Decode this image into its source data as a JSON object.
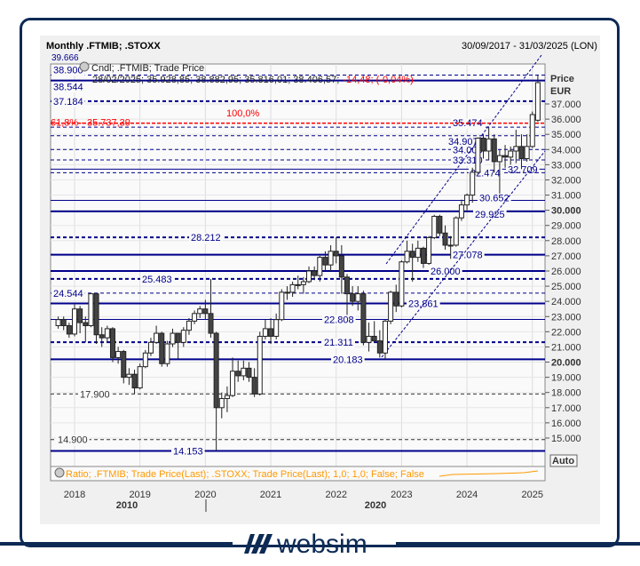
{
  "header": {
    "title": "Monthly .FTMIB; .STOXX",
    "date_range": "30/09/2017 - 31/03/2025 (LON)"
  },
  "legend": {
    "line1": "Cndl; .FTMIB; Trade Price",
    "line2_values": "28/02/2025; 35.928,85; 38.882,95; 35.816,01; 38.406,57;",
    "change": "-14,48; (-0,04%)",
    "fib_100": "100,0%",
    "fib_618": "61,8% - 35.737,39",
    "top_cut": "39.666"
  },
  "axis": {
    "title1": "Price",
    "title2": "EUR",
    "auto": "Auto",
    "yticks": [
      "37.000",
      "36.000",
      "35.000",
      "34.000",
      "33.000",
      "32.000",
      "31.000",
      "30.000",
      "29.000",
      "28.000",
      "27.000",
      "26.000",
      "25.000",
      "24.000",
      "23.000",
      "22.000",
      "21.000",
      "20.000",
      "19.000",
      "18.000",
      "17.000",
      "16.000",
      "15.000"
    ],
    "bold_ticks": [
      "30.000",
      "20.000"
    ],
    "xticks": [
      "2018",
      "2019",
      "2020",
      "2021",
      "2022",
      "2023",
      "2024",
      "2025"
    ],
    "decades": [
      "2010",
      "2020"
    ]
  },
  "levels": [
    {
      "label": "38.900",
      "style": "dash"
    },
    {
      "label": "38.544",
      "style": "solid-thick"
    },
    {
      "label": "37.184",
      "style": "dash-thick"
    },
    {
      "label": "35.474",
      "style": "dash"
    },
    {
      "label": "34.907",
      "style": "dash"
    },
    {
      "label": "34.000",
      "style": "dash"
    },
    {
      "label": "33.310",
      "style": "dash"
    },
    {
      "label": "32.709",
      "style": "solid"
    },
    {
      "label": "32.474",
      "style": "dash"
    },
    {
      "label": "30.652",
      "style": "solid"
    },
    {
      "label": "29.925",
      "style": "solid-thick"
    },
    {
      "label": "28.212",
      "style": "dash-thick"
    },
    {
      "label": "27.078",
      "style": "solid-thick"
    },
    {
      "label": "26.000",
      "style": "solid-thick"
    },
    {
      "label": "25.483",
      "style": "dash-thick"
    },
    {
      "label": "24.544",
      "style": "dash"
    },
    {
      "label": "23.861",
      "style": "solid-thick"
    },
    {
      "label": "22.808",
      "style": "solid"
    },
    {
      "label": "21.311",
      "style": "dash-thick"
    },
    {
      "label": "20.183",
      "style": "solid-thick"
    },
    {
      "label": "17.900",
      "style": "dash-black"
    },
    {
      "label": "14.900",
      "style": "dash-black"
    },
    {
      "label": "14.153",
      "style": "solid-thick"
    }
  ],
  "lower_pane": {
    "legend": "Ratio; .FTMIB; Trade Price(Last); .STOXX; Trade Price(Last);  1,0; 1,0; False; False"
  },
  "colors": {
    "level": "#00008b",
    "fib": "#ff0000",
    "ratio": "#ff9900",
    "frame": "#0d2a55"
  },
  "brand": "websim",
  "chart_data": {
    "type": "candlestick",
    "interval": "monthly",
    "start": "2017-10",
    "ylim": [
      14000,
      39700
    ],
    "ohlc": [
      [
        22400,
        23000,
        22200,
        22800
      ],
      [
        22800,
        23000,
        22100,
        22400
      ],
      [
        22400,
        22600,
        21600,
        21850
      ],
      [
        21850,
        23800,
        21700,
        23500
      ],
      [
        23500,
        23700,
        21900,
        22600
      ],
      [
        22600,
        23000,
        21300,
        22400
      ],
      [
        22400,
        24544,
        22300,
        24500
      ],
      [
        24500,
        24500,
        21200,
        21800
      ],
      [
        21800,
        22300,
        21000,
        21600
      ],
      [
        21600,
        22400,
        21300,
        22200
      ],
      [
        22200,
        22300,
        20000,
        20300
      ],
      [
        20300,
        21000,
        19900,
        20700
      ],
      [
        20700,
        20800,
        18600,
        19000
      ],
      [
        19000,
        19600,
        18500,
        19200
      ],
      [
        19200,
        19500,
        17900,
        18300
      ],
      [
        18300,
        19900,
        18200,
        19700
      ],
      [
        19700,
        20800,
        19600,
        20600
      ],
      [
        20600,
        21600,
        20400,
        21300
      ],
      [
        21300,
        22400,
        21200,
        21900
      ],
      [
        21900,
        22000,
        19700,
        19900
      ],
      [
        19900,
        21400,
        19700,
        21200
      ],
      [
        21200,
        22200,
        21000,
        21900
      ],
      [
        21900,
        21900,
        20200,
        21300
      ],
      [
        21300,
        22300,
        21000,
        22100
      ],
      [
        22100,
        22900,
        21800,
        22700
      ],
      [
        22700,
        23400,
        22500,
        23200
      ],
      [
        23200,
        23700,
        22900,
        23500
      ],
      [
        23500,
        24100,
        22800,
        23200
      ],
      [
        23200,
        25483,
        21600,
        21900
      ],
      [
        21900,
        22000,
        14153,
        17000
      ],
      [
        17000,
        18000,
        16300,
        17600
      ],
      [
        17600,
        18400,
        16700,
        17800
      ],
      [
        17800,
        20300,
        17700,
        19400
      ],
      [
        19400,
        20100,
        18700,
        19100
      ],
      [
        19100,
        20100,
        18800,
        19600
      ],
      [
        19600,
        20000,
        18700,
        19000
      ],
      [
        19000,
        19600,
        17700,
        17900
      ],
      [
        17900,
        22000,
        17800,
        21700
      ],
      [
        21700,
        22800,
        21500,
        22200
      ],
      [
        22200,
        22900,
        21200,
        21700
      ],
      [
        21700,
        23200,
        21500,
        22800
      ],
      [
        22800,
        24800,
        22700,
        24600
      ],
      [
        24600,
        25000,
        24100,
        24600
      ],
      [
        24600,
        25300,
        24300,
        25100
      ],
      [
        25100,
        25700,
        24800,
        25100
      ],
      [
        25100,
        25600,
        24500,
        25300
      ],
      [
        25300,
        26300,
        25200,
        26000
      ],
      [
        26000,
        26300,
        25400,
        25700
      ],
      [
        25700,
        27000,
        25300,
        26900
      ],
      [
        26900,
        27300,
        26000,
        26400
      ],
      [
        26400,
        27700,
        26000,
        27300
      ],
      [
        27300,
        28212,
        26500,
        27000
      ],
      [
        27000,
        27700,
        24500,
        25600
      ],
      [
        25600,
        25800,
        23100,
        24500
      ],
      [
        24500,
        25000,
        23700,
        24000
      ],
      [
        24000,
        25000,
        23400,
        24500
      ],
      [
        24500,
        24700,
        21100,
        21300
      ],
      [
        21300,
        22600,
        20700,
        21700
      ],
      [
        21700,
        22700,
        21300,
        21400
      ],
      [
        21400,
        22100,
        20300,
        20600
      ],
      [
        20600,
        22800,
        20183,
        22700
      ],
      [
        22700,
        24700,
        22500,
        24600
      ],
      [
        24600,
        25100,
        23300,
        23700
      ],
      [
        23700,
        26700,
        23600,
        26600
      ],
      [
        26600,
        28000,
        26500,
        27300
      ],
      [
        27300,
        27800,
        25300,
        26900
      ],
      [
        26900,
        28000,
        26600,
        27500
      ],
      [
        27500,
        27600,
        26200,
        26500
      ],
      [
        26500,
        28300,
        26400,
        28200
      ],
      [
        28200,
        29700,
        28100,
        29600
      ],
      [
        29600,
        29700,
        28300,
        28500
      ],
      [
        28500,
        29000,
        27400,
        27700
      ],
      [
        27700,
        28300,
        26800,
        27700
      ],
      [
        27700,
        29600,
        27600,
        29500
      ],
      [
        29500,
        30700,
        29300,
        30350
      ],
      [
        30350,
        31100,
        30000,
        31000
      ],
      [
        31000,
        32800,
        30500,
        32500
      ],
      [
        32500,
        34800,
        32400,
        34750
      ],
      [
        34750,
        35000,
        33400,
        33900
      ],
      [
        33900,
        35474,
        33300,
        34700
      ],
      [
        34700,
        35000,
        32474,
        33200
      ],
      [
        33200,
        34000,
        31100,
        33600
      ],
      [
        33600,
        34300,
        32800,
        33500
      ],
      [
        33500,
        34200,
        33000,
        33900
      ],
      [
        33900,
        35300,
        33100,
        34200
      ],
      [
        34200,
        35000,
        32709,
        33400
      ],
      [
        33400,
        35000,
        33200,
        34200
      ],
      [
        34200,
        36500,
        34100,
        36300
      ],
      [
        35929,
        38883,
        35816,
        38407
      ]
    ]
  }
}
